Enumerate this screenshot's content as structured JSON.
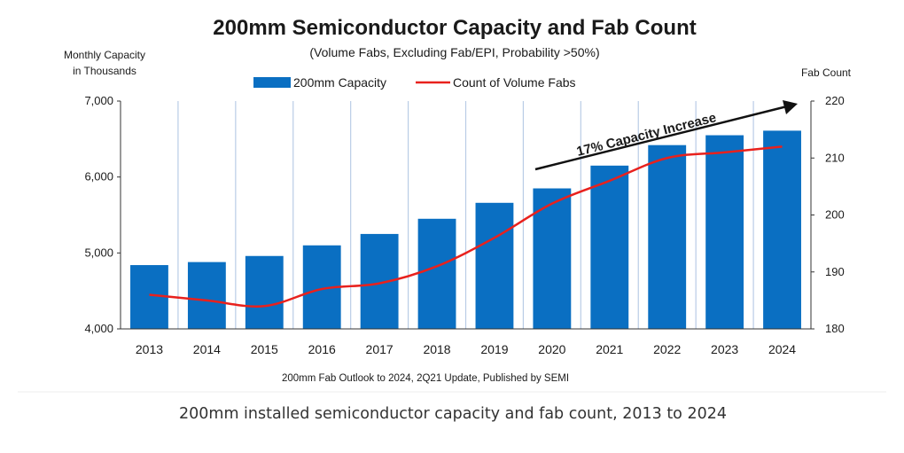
{
  "chart_data": {
    "type": "bar",
    "title": "200mm Semiconductor Capacity and Fab Count",
    "subtitle": "(Volume Fabs, Excluding Fab/EPI, Probability >50%)",
    "categories": [
      "2013",
      "2014",
      "2015",
      "2016",
      "2017",
      "2018",
      "2019",
      "2020",
      "2021",
      "2022",
      "2023",
      "2024"
    ],
    "series": [
      {
        "name": "200mm Capacity",
        "type": "bar",
        "axis": "left",
        "color": "#0a6fc2",
        "values": [
          4840,
          4880,
          4960,
          5100,
          5250,
          5450,
          5660,
          5850,
          6150,
          6420,
          6550,
          6610
        ]
      },
      {
        "name": "Count of Volume Fabs",
        "type": "line",
        "axis": "right",
        "color": "#e8211d",
        "values": [
          186,
          185,
          184,
          187,
          188,
          191,
          196,
          202,
          206,
          210,
          211,
          212
        ]
      }
    ],
    "ylabel_left_line1": "Monthly Capacity",
    "ylabel_left_line2": "in Thousands",
    "ylabel_right": "Fab Count",
    "ylim_left": [
      4000,
      7000
    ],
    "yticks_left": [
      "4,000",
      "5,000",
      "6,000",
      "7,000"
    ],
    "ylim_right": [
      180,
      220
    ],
    "yticks_right": [
      "180",
      "190",
      "200",
      "210",
      "220"
    ],
    "annotation": "17% Capacity Increase",
    "source": "200mm Fab Outlook to 2024, 2Q21 Update, Published by SEMI",
    "legend_position": "top-center",
    "grid": "vertical"
  },
  "caption": "200mm installed semiconductor capacity and fab count, 2013 to 2024"
}
